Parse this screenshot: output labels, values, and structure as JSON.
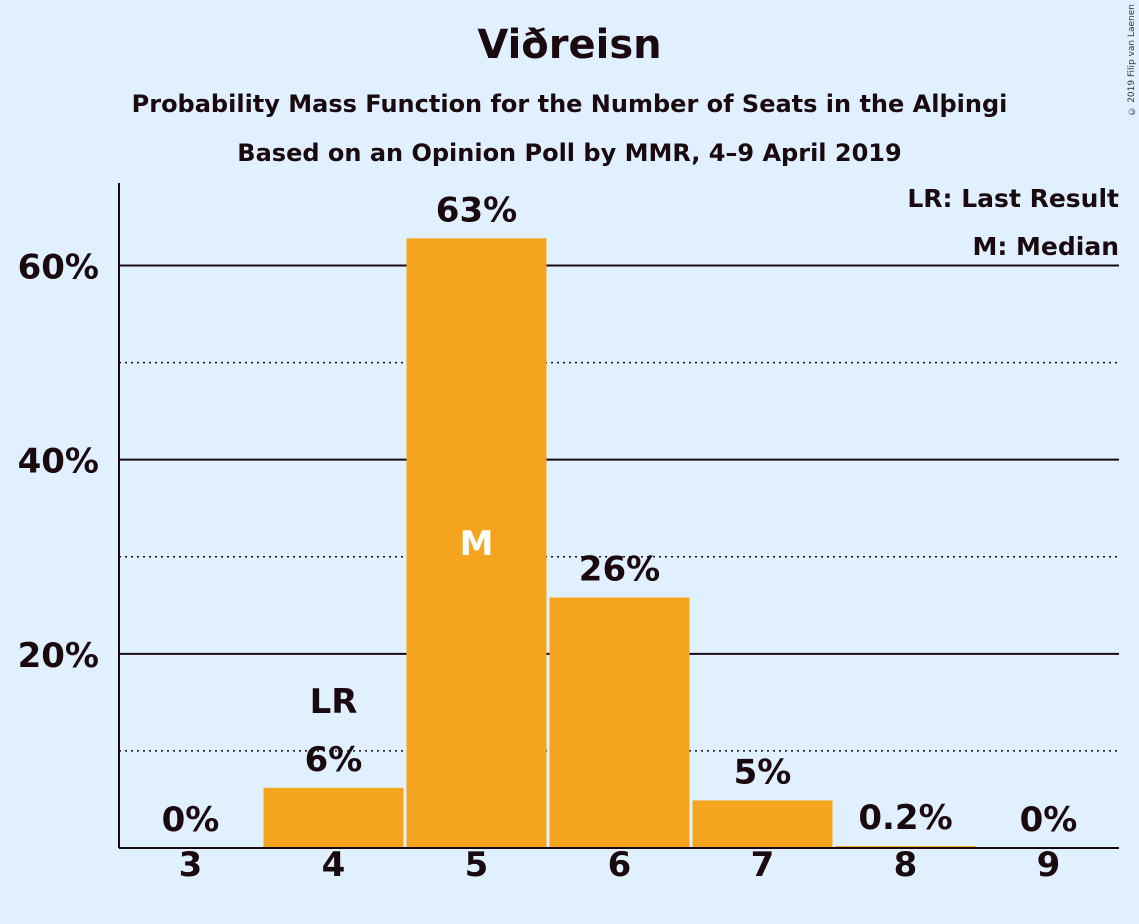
{
  "title": "Viðreisn",
  "subtitle1": "Probability Mass Function for the Number of Seats in the Alþingi",
  "subtitle2": "Based on an Opinion Poll by MMR, 4–9 April 2019",
  "copyright": "© 2019 Filip van Laenen",
  "legend": {
    "lr": "LR: Last Result",
    "median": "M: Median"
  },
  "colors": {
    "bar": "#f4a41d",
    "background": "#e1f0ff",
    "text": "#1a0a10"
  },
  "chart_data": {
    "type": "bar",
    "categories": [
      "3",
      "4",
      "5",
      "6",
      "7",
      "8",
      "9"
    ],
    "values": [
      0,
      6.2,
      62.8,
      25.8,
      4.9,
      0.2,
      0
    ],
    "data_labels": [
      "0%",
      "6%",
      "63%",
      "26%",
      "5%",
      "0.2%",
      "0%"
    ],
    "ylim": [
      0,
      68.5
    ],
    "yticks": [
      20,
      40,
      60
    ],
    "ytick_labels": [
      "20%",
      "40%",
      "60%"
    ],
    "minor_gridlines": [
      10,
      30,
      50
    ],
    "markers": {
      "last_result": {
        "category": "4",
        "label": "LR"
      },
      "median": {
        "category": "5",
        "label": "M"
      }
    },
    "grid": true
  }
}
